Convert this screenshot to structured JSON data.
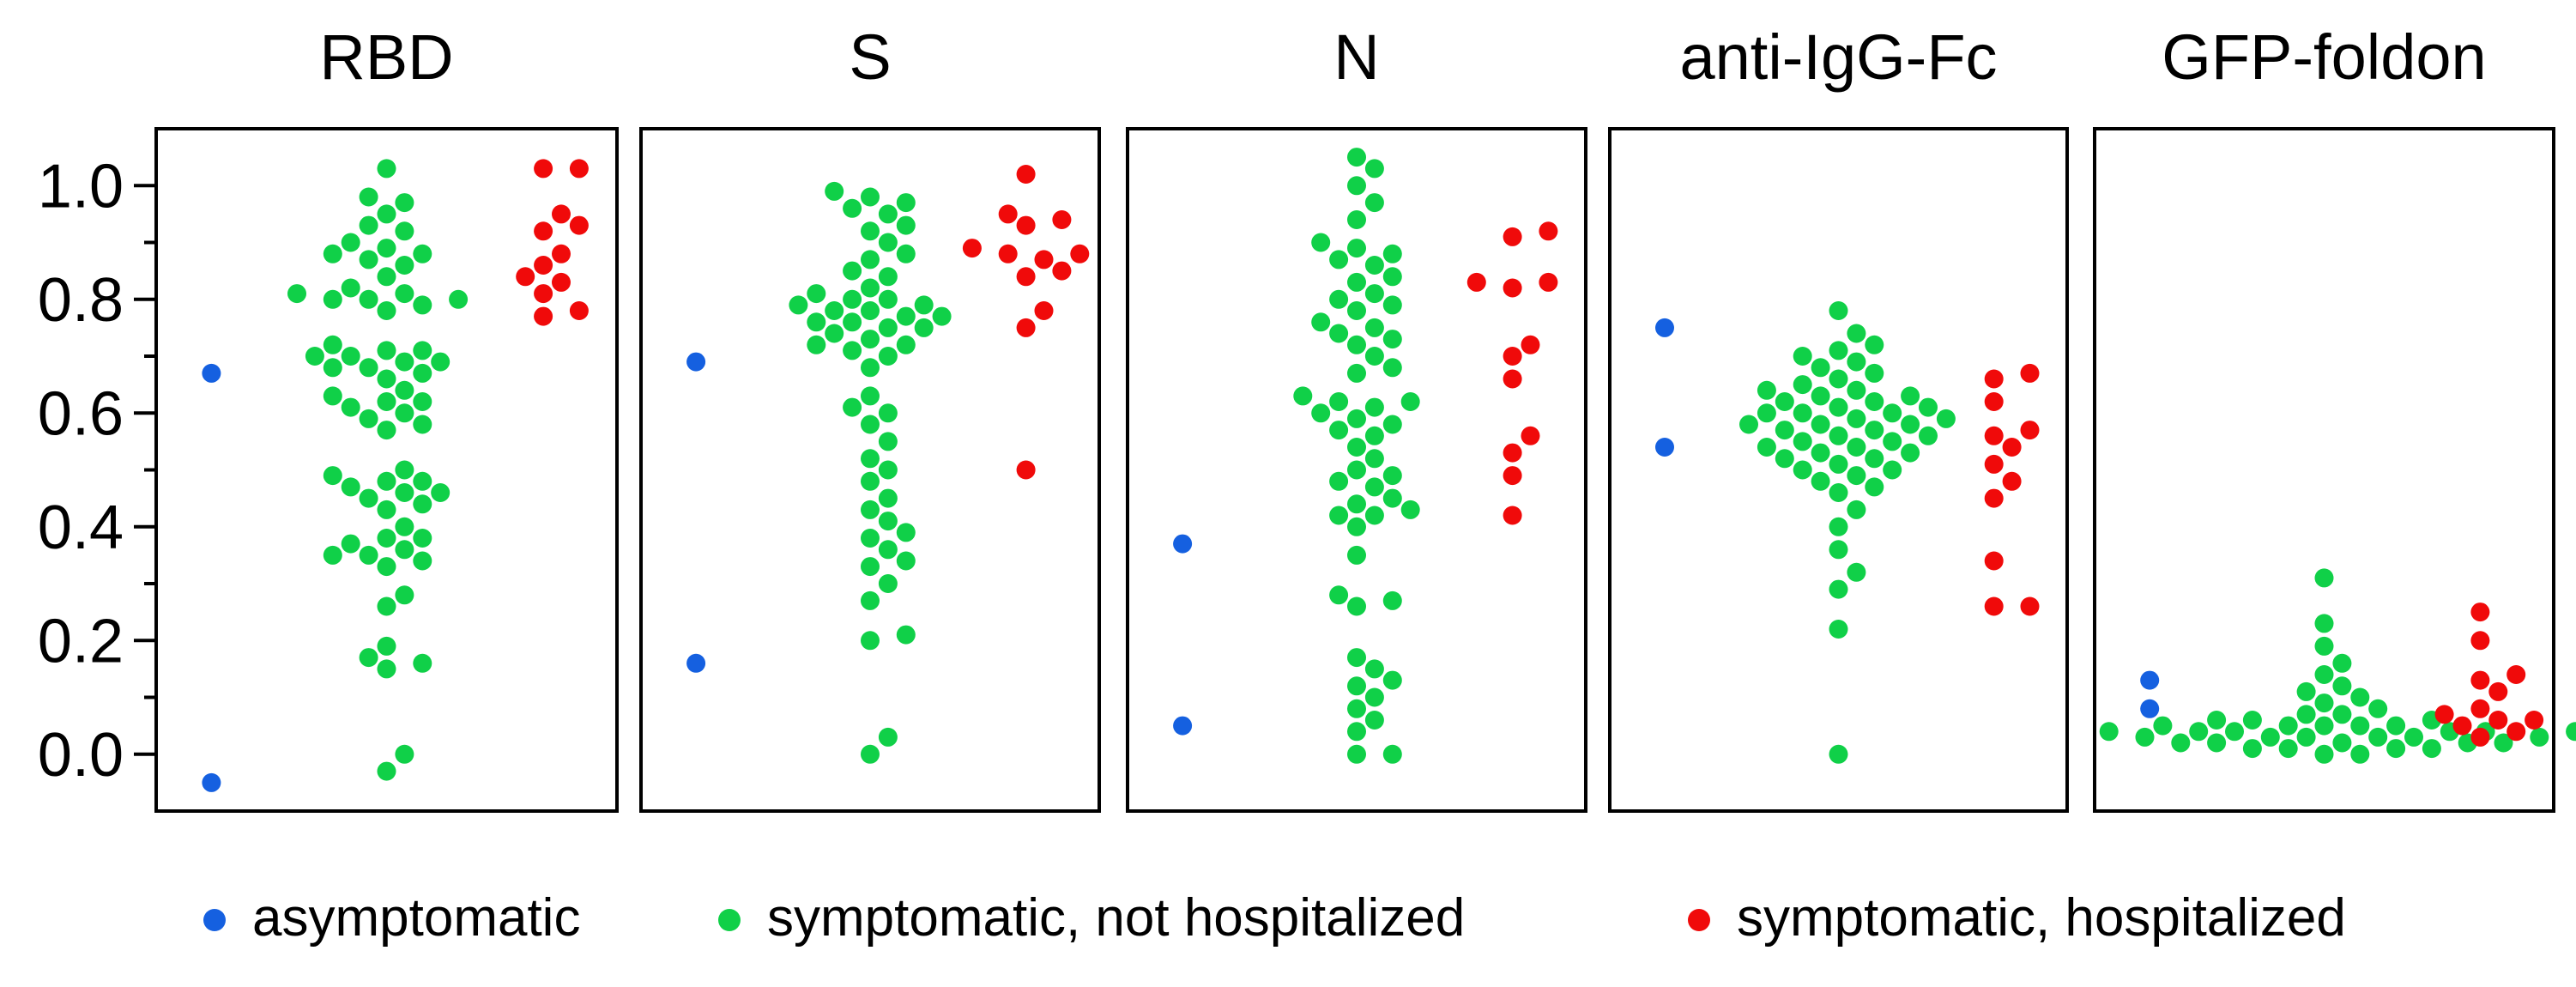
{
  "chart_data": {
    "type": "scatter",
    "subtype": "beeswarm",
    "yaxis": {
      "ylim": [
        -0.1,
        1.1
      ],
      "ticks": [
        0.0,
        0.2,
        0.4,
        0.6,
        0.8,
        1.0
      ],
      "tick_labels": [
        "0.0",
        "0.2",
        "0.4",
        "0.6",
        "0.8",
        "1.0"
      ],
      "label": ""
    },
    "groups": [
      {
        "key": "asym",
        "name": "asymptomatic",
        "color": "#1560e0"
      },
      {
        "key": "notHosp",
        "name": "symptomatic, not hospitalized",
        "color": "#10d048"
      },
      {
        "key": "hosp",
        "name": "symptomatic, hospitalized",
        "color": "#f00a0a"
      }
    ],
    "legend": {
      "placement": "bottom",
      "items": [
        "asymptomatic",
        "symptomatic, not hospitalized",
        "symptomatic, hospitalized"
      ]
    },
    "panels": [
      {
        "title": "RBD",
        "asym": [
          -0.05,
          0.67
        ],
        "notHosp": [
          -0.03,
          0.0,
          0.15,
          0.16,
          0.17,
          0.19,
          0.26,
          0.28,
          0.33,
          0.34,
          0.35,
          0.35,
          0.36,
          0.37,
          0.38,
          0.38,
          0.4,
          0.43,
          0.44,
          0.45,
          0.46,
          0.46,
          0.47,
          0.48,
          0.48,
          0.49,
          0.5,
          0.57,
          0.58,
          0.59,
          0.6,
          0.61,
          0.62,
          0.62,
          0.63,
          0.64,
          0.66,
          0.67,
          0.68,
          0.68,
          0.69,
          0.69,
          0.7,
          0.7,
          0.71,
          0.71,
          0.72,
          0.78,
          0.79,
          0.8,
          0.8,
          0.8,
          0.81,
          0.81,
          0.82,
          0.84,
          0.86,
          0.87,
          0.88,
          0.88,
          0.89,
          0.9,
          0.92,
          0.93,
          0.95,
          0.97,
          0.98,
          1.03
        ],
        "hosp": [
          0.77,
          0.78,
          0.81,
          0.83,
          0.84,
          0.86,
          0.88,
          0.92,
          0.93,
          0.95,
          1.03,
          1.03
        ]
      },
      {
        "title": "S",
        "asym": [
          0.16,
          0.69
        ],
        "notHosp": [
          0.0,
          0.03,
          0.2,
          0.21,
          0.27,
          0.3,
          0.33,
          0.34,
          0.36,
          0.38,
          0.39,
          0.41,
          0.43,
          0.45,
          0.48,
          0.5,
          0.52,
          0.55,
          0.58,
          0.6,
          0.61,
          0.63,
          0.68,
          0.7,
          0.71,
          0.72,
          0.72,
          0.73,
          0.74,
          0.75,
          0.75,
          0.76,
          0.76,
          0.77,
          0.77,
          0.78,
          0.78,
          0.79,
          0.79,
          0.8,
          0.8,
          0.81,
          0.82,
          0.84,
          0.85,
          0.87,
          0.88,
          0.9,
          0.92,
          0.93,
          0.95,
          0.96,
          0.97,
          0.98,
          0.99
        ],
        "hosp": [
          0.5,
          0.75,
          0.78,
          0.84,
          0.85,
          0.87,
          0.88,
          0.88,
          0.89,
          0.93,
          0.94,
          0.95,
          1.02
        ]
      },
      {
        "title": "N",
        "asym": [
          0.05,
          0.37
        ],
        "notHosp": [
          0.0,
          0.0,
          0.04,
          0.06,
          0.08,
          0.1,
          0.12,
          0.13,
          0.15,
          0.17,
          0.26,
          0.27,
          0.28,
          0.35,
          0.4,
          0.42,
          0.42,
          0.43,
          0.44,
          0.45,
          0.47,
          0.48,
          0.49,
          0.5,
          0.52,
          0.54,
          0.56,
          0.57,
          0.58,
          0.59,
          0.6,
          0.61,
          0.62,
          0.62,
          0.63,
          0.67,
          0.68,
          0.7,
          0.72,
          0.73,
          0.74,
          0.75,
          0.76,
          0.78,
          0.79,
          0.8,
          0.81,
          0.83,
          0.84,
          0.86,
          0.87,
          0.88,
          0.89,
          0.9,
          0.94,
          0.97,
          1.0,
          1.03,
          1.05
        ],
        "hosp": [
          0.42,
          0.49,
          0.53,
          0.56,
          0.66,
          0.7,
          0.72,
          0.82,
          0.83,
          0.83,
          0.91,
          0.92
        ]
      },
      {
        "title": "anti-IgG-Fc",
        "asym": [
          0.54,
          0.75
        ],
        "notHosp": [
          0.0,
          0.22,
          0.29,
          0.32,
          0.36,
          0.4,
          0.43,
          0.46,
          0.47,
          0.48,
          0.49,
          0.5,
          0.5,
          0.51,
          0.52,
          0.52,
          0.53,
          0.53,
          0.54,
          0.54,
          0.55,
          0.55,
          0.56,
          0.56,
          0.57,
          0.57,
          0.58,
          0.58,
          0.58,
          0.59,
          0.59,
          0.6,
          0.6,
          0.6,
          0.61,
          0.61,
          0.62,
          0.62,
          0.63,
          0.63,
          0.64,
          0.64,
          0.65,
          0.66,
          0.67,
          0.68,
          0.69,
          0.7,
          0.71,
          0.72,
          0.74,
          0.78
        ],
        "hosp": [
          0.26,
          0.26,
          0.34,
          0.45,
          0.48,
          0.51,
          0.54,
          0.56,
          0.57,
          0.62,
          0.66,
          0.67
        ]
      },
      {
        "title": "GFP-foldon",
        "asym": [
          0.08,
          0.13
        ],
        "notHosp": [
          0.0,
          0.0,
          0.01,
          0.01,
          0.01,
          0.01,
          0.02,
          0.02,
          0.02,
          0.02,
          0.02,
          0.03,
          0.03,
          0.03,
          0.03,
          0.03,
          0.03,
          0.04,
          0.04,
          0.04,
          0.04,
          0.04,
          0.04,
          0.05,
          0.05,
          0.05,
          0.05,
          0.05,
          0.06,
          0.06,
          0.06,
          0.07,
          0.07,
          0.08,
          0.09,
          0.1,
          0.11,
          0.12,
          0.14,
          0.16,
          0.19,
          0.23,
          0.31
        ],
        "hosp": [
          0.03,
          0.04,
          0.05,
          0.06,
          0.06,
          0.07,
          0.08,
          0.11,
          0.13,
          0.14,
          0.2,
          0.25
        ]
      }
    ]
  }
}
